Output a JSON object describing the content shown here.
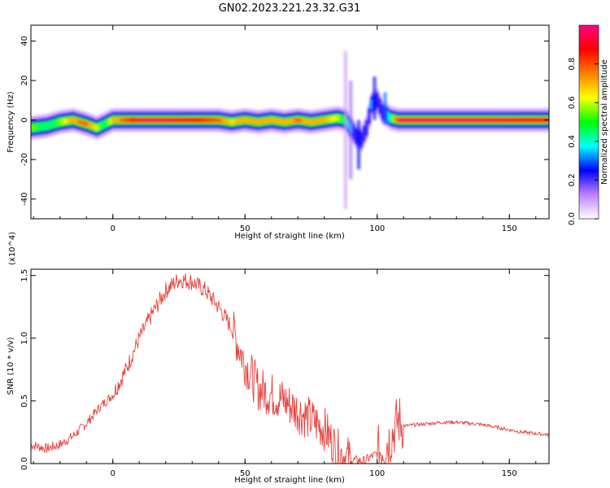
{
  "title": "GN02.2023.221.23.32.G31",
  "chart_data": [
    {
      "type": "heatmap",
      "xlabel": "Height of straight line (km)",
      "ylabel": "Frequency (Hz)",
      "xlim": [
        -31,
        165
      ],
      "ylim": [
        -50,
        48
      ],
      "xticks": [
        0,
        50,
        100,
        150
      ],
      "yticks": [
        -40,
        -20,
        0,
        20,
        40
      ],
      "colorbar": {
        "label": "Normalized spectral amplitude",
        "range": [
          0.0,
          1.0
        ],
        "ticks": [
          "0.0",
          "0.2",
          "0.4",
          "0.6",
          "0.8"
        ],
        "colors": [
          "#ffffff",
          "#c080ff",
          "#0000ff",
          "#00ffff",
          "#00ff00",
          "#ffff00",
          "#ff8000",
          "#ff0000",
          "#ff0080"
        ]
      },
      "ridge": {
        "x": [
          -31,
          -25,
          -20,
          -15,
          -10,
          -6,
          -3,
          0,
          10,
          20,
          30,
          40,
          45,
          50,
          55,
          60,
          65,
          70,
          75,
          80,
          85,
          88,
          90,
          92,
          94,
          96,
          98,
          100,
          102,
          105,
          108,
          120,
          140,
          165
        ],
        "y": [
          -4,
          -3,
          -1,
          0,
          -2,
          -4,
          -2,
          0,
          0,
          0,
          0,
          0,
          -1,
          0,
          -1,
          0,
          -1,
          0,
          -1,
          0,
          1,
          0,
          -4,
          -8,
          -10,
          -4,
          8,
          10,
          4,
          1,
          0,
          0,
          0,
          0
        ],
        "amplitude": [
          0.55,
          0.5,
          0.55,
          0.75,
          0.8,
          0.6,
          0.45,
          0.7,
          0.95,
          0.95,
          0.9,
          0.8,
          0.65,
          0.75,
          0.7,
          0.75,
          0.7,
          0.8,
          0.7,
          0.7,
          0.6,
          0.45,
          0.35,
          0.3,
          0.25,
          0.3,
          0.35,
          0.3,
          0.3,
          0.4,
          0.95,
          0.95,
          0.95,
          0.9
        ]
      }
    },
    {
      "type": "line",
      "xlabel": "Height of straight line (km)",
      "ylabel": "SNR (10 * v/v)",
      "yscale_note": "(x10^4)",
      "xlim": [
        -31,
        165
      ],
      "ylim": [
        0,
        1.55
      ],
      "xticks": [
        0,
        50,
        100,
        150
      ],
      "yticks": [
        "0.0",
        "0.5",
        "1.0",
        "1.5"
      ],
      "color": "#e8403c",
      "x": [
        -31,
        -25,
        -20,
        -15,
        -10,
        -5,
        0,
        5,
        10,
        15,
        20,
        25,
        30,
        35,
        40,
        45,
        50,
        55,
        60,
        65,
        70,
        75,
        80,
        85,
        90,
        95,
        100,
        105,
        108,
        110,
        115,
        120,
        125,
        130,
        135,
        140,
        145,
        150,
        155,
        160,
        165
      ],
      "y": [
        0.15,
        0.12,
        0.15,
        0.22,
        0.32,
        0.45,
        0.55,
        0.75,
        1.0,
        1.2,
        1.38,
        1.47,
        1.45,
        1.38,
        1.25,
        1.08,
        0.8,
        0.6,
        0.55,
        0.5,
        0.42,
        0.35,
        0.28,
        0.1,
        0.03,
        0.02,
        0.08,
        0.2,
        0.35,
        0.3,
        0.31,
        0.32,
        0.33,
        0.33,
        0.32,
        0.31,
        0.29,
        0.27,
        0.25,
        0.24,
        0.23
      ]
    }
  ]
}
